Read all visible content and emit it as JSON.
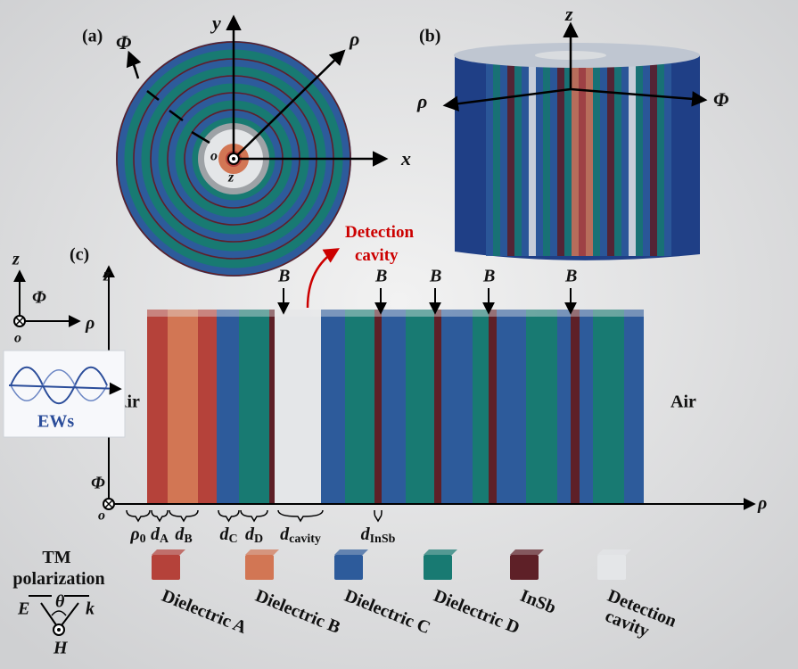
{
  "panels": {
    "a": "(a)",
    "b": "(b)",
    "c": "(c)"
  },
  "panel_a": {
    "x": "x",
    "y": "y",
    "rho": "ρ",
    "phi": "Φ",
    "origin": "o",
    "z": "z"
  },
  "panel_b": {
    "z": "z",
    "rho": "ρ",
    "phi": "Φ"
  },
  "panel_c": {
    "z": "z",
    "rho": "ρ",
    "phi": "Φ",
    "origin": "o",
    "corner_axes": {
      "z": "z",
      "phi": "Φ",
      "rho": "ρ",
      "origin": "o"
    },
    "field_labels": [
      "B",
      "B",
      "B",
      "B",
      "B"
    ],
    "detection_cavity": [
      "Detection",
      "cavity"
    ],
    "air_left": "Air",
    "air_right": "Air",
    "ews": "EWs",
    "dimensions": [
      {
        "base": "ρ",
        "sub": "0"
      },
      {
        "base": "d",
        "sub": "A"
      },
      {
        "base": "d",
        "sub": "B"
      },
      {
        "base": "d",
        "sub": "C"
      },
      {
        "base": "d",
        "sub": "D"
      },
      {
        "base": "d",
        "sub": "cavity"
      },
      {
        "base": "d",
        "sub": "InSb"
      }
    ]
  },
  "tm": {
    "title": [
      "TM",
      "polarization"
    ],
    "E": "E",
    "theta": "θ",
    "k": "k",
    "H": "H"
  },
  "legend": [
    {
      "label": [
        "Dielectric A"
      ],
      "color": "#b5423a"
    },
    {
      "label": [
        "Dielectric B"
      ],
      "color": "#d27654"
    },
    {
      "label": [
        "Dielectric C"
      ],
      "color": "#2d5b9b"
    },
    {
      "label": [
        "Dielectric D"
      ],
      "color": "#187a72"
    },
    {
      "label": [
        "InSb"
      ],
      "color": "#5e2027"
    },
    {
      "label": [
        "Detection",
        "cavity"
      ],
      "color": "#e4e6e8"
    }
  ]
}
